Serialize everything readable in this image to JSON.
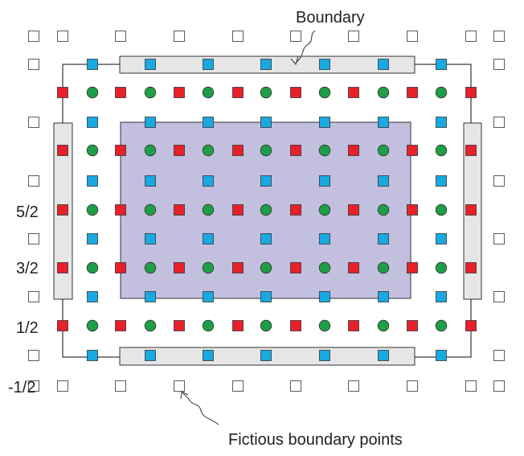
{
  "annotations": {
    "boundary": "Boundary",
    "fictitious": "Fictious boundary points"
  },
  "row_labels": [
    "5/2",
    "3/2",
    "1/2",
    "-1/2"
  ],
  "colors": {
    "pressure": "#e8202a",
    "velocity": "#19a9e2",
    "circle": "#1e9e47",
    "fictitious": "#ffffff",
    "interior": "#c2bfdf",
    "strip": "#e6e6e6",
    "outline": "#333333"
  },
  "icons": {
    "pressure": "red-square",
    "velocity": "blue-square",
    "circle": "green-circle",
    "fictitious": "empty-square"
  }
}
